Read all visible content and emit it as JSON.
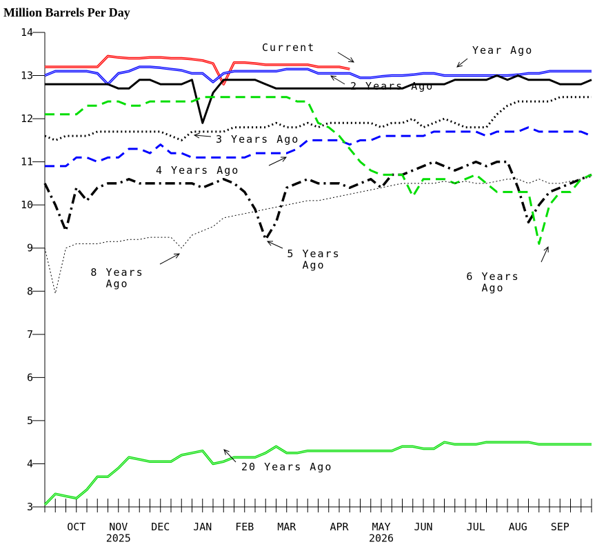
{
  "chart_data": {
    "type": "line",
    "title": "Million Barrels Per Day",
    "categories": [
      null,
      null,
      null,
      "OCT",
      null,
      null,
      null,
      "NOV\n2025",
      null,
      null,
      null,
      "DEC",
      null,
      null,
      null,
      "JAN",
      null,
      null,
      null,
      "FEB",
      null,
      null,
      null,
      "MAR",
      null,
      null,
      null,
      null,
      "APR",
      null,
      null,
      null,
      "MAY\n2026",
      null,
      null,
      null,
      "JUN",
      null,
      null,
      null,
      null,
      "JUL",
      null,
      null,
      null,
      "AUG",
      null,
      null,
      null,
      "SEP",
      null,
      null,
      null
    ],
    "ylim": [
      3,
      14
    ],
    "yticks": [
      3,
      4,
      5,
      6,
      7,
      8,
      9,
      10,
      11,
      12,
      13,
      14
    ],
    "series": [
      {
        "name": "Current",
        "color": "#ff0000",
        "style": "double",
        "values": [
          13.2,
          13.2,
          13.2,
          13.2,
          13.2,
          13.2,
          13.45,
          13.42,
          13.4,
          13.4,
          13.42,
          13.42,
          13.4,
          13.4,
          13.38,
          13.35,
          13.28,
          12.8,
          13.3,
          13.3,
          13.28,
          13.25,
          13.25,
          13.25,
          13.25,
          13.25,
          13.2,
          13.2,
          13.2,
          13.15,
          null,
          null,
          null,
          null,
          null,
          null,
          null,
          null,
          null,
          null,
          null,
          null,
          null,
          null,
          null,
          null,
          null,
          null,
          null,
          null,
          null,
          null,
          null
        ]
      },
      {
        "name": "Year Ago",
        "color": "#0000ff",
        "style": "double",
        "values": [
          13.0,
          13.1,
          13.1,
          13.1,
          13.1,
          13.05,
          12.8,
          13.05,
          13.1,
          13.2,
          13.2,
          13.18,
          13.15,
          13.12,
          13.05,
          13.05,
          12.85,
          13.05,
          13.1,
          13.1,
          13.1,
          13.1,
          13.1,
          13.15,
          13.15,
          13.15,
          13.05,
          13.05,
          13.05,
          13.05,
          12.95,
          12.95,
          12.98,
          13.0,
          13.0,
          13.02,
          13.05,
          13.05,
          13.0,
          13.0,
          13.0,
          13.0,
          13.0,
          13.0,
          13.0,
          13.02,
          13.05,
          13.05,
          13.1,
          13.1,
          13.1,
          13.1,
          13.1
        ]
      },
      {
        "name": "2 Years Ago",
        "color": "#000000",
        "style": "solid",
        "values": [
          12.8,
          12.8,
          12.8,
          12.8,
          12.8,
          12.8,
          12.8,
          12.7,
          12.7,
          12.9,
          12.9,
          12.8,
          12.8,
          12.8,
          12.9,
          11.9,
          12.6,
          12.9,
          12.9,
          12.9,
          12.9,
          12.8,
          12.7,
          12.7,
          12.7,
          12.7,
          12.7,
          12.7,
          12.7,
          12.7,
          12.7,
          12.7,
          12.7,
          12.7,
          12.7,
          12.8,
          12.8,
          12.8,
          12.8,
          12.9,
          12.9,
          12.9,
          12.9,
          13.0,
          12.9,
          13.0,
          12.9,
          12.9,
          12.9,
          12.8,
          12.8,
          12.8,
          12.9
        ]
      },
      {
        "name": "3 Years Ago",
        "color": "#000000",
        "style": "dotted",
        "values": [
          11.6,
          11.5,
          11.6,
          11.6,
          11.6,
          11.7,
          11.7,
          11.7,
          11.7,
          11.7,
          11.7,
          11.7,
          11.6,
          11.5,
          11.7,
          11.7,
          11.7,
          11.7,
          11.8,
          11.8,
          11.8,
          11.8,
          11.9,
          11.8,
          11.8,
          11.9,
          11.8,
          11.9,
          11.9,
          11.9,
          11.9,
          11.9,
          11.8,
          11.9,
          11.9,
          12.0,
          11.8,
          11.9,
          12.0,
          11.9,
          11.8,
          11.8,
          11.8,
          12.1,
          12.3,
          12.4,
          12.4,
          12.4,
          12.4,
          12.5,
          12.5,
          12.5,
          12.5
        ]
      },
      {
        "name": "4 Years Ago",
        "color": "#0000ff",
        "style": "dashed",
        "values": [
          10.9,
          10.9,
          10.9,
          11.1,
          11.1,
          11.0,
          11.1,
          11.1,
          11.3,
          11.3,
          11.2,
          11.4,
          11.2,
          11.2,
          11.1,
          11.1,
          11.1,
          11.1,
          11.1,
          11.1,
          11.2,
          11.2,
          11.2,
          11.2,
          11.3,
          11.5,
          11.5,
          11.5,
          11.5,
          11.4,
          11.5,
          11.5,
          11.6,
          11.6,
          11.6,
          11.6,
          11.6,
          11.7,
          11.7,
          11.7,
          11.7,
          11.7,
          11.6,
          11.7,
          11.7,
          11.7,
          11.8,
          11.7,
          11.7,
          11.7,
          11.7,
          11.7,
          11.6
        ]
      },
      {
        "name": "5 Years Ago",
        "color": "#000000",
        "style": "dashdot",
        "values": [
          10.5,
          10.0,
          9.4,
          10.4,
          10.1,
          10.4,
          10.5,
          10.5,
          10.6,
          10.5,
          10.5,
          10.5,
          10.5,
          10.5,
          10.5,
          10.4,
          10.5,
          10.6,
          10.5,
          10.3,
          9.9,
          9.2,
          9.6,
          10.4,
          10.5,
          10.6,
          10.5,
          10.5,
          10.5,
          10.4,
          10.5,
          10.6,
          10.4,
          10.7,
          10.7,
          10.8,
          10.9,
          11.0,
          10.9,
          10.8,
          10.9,
          11.0,
          10.9,
          11.0,
          11.0,
          10.4,
          9.6,
          10.0,
          10.3,
          10.4,
          10.5,
          10.6,
          10.7
        ]
      },
      {
        "name": "6 Years Ago",
        "color": "#00dd00",
        "style": "dashed",
        "values": [
          12.1,
          12.1,
          12.1,
          12.1,
          12.3,
          12.3,
          12.4,
          12.4,
          12.3,
          12.3,
          12.4,
          12.4,
          12.4,
          12.4,
          12.4,
          12.5,
          12.5,
          12.5,
          12.5,
          12.5,
          12.5,
          12.5,
          12.5,
          12.5,
          12.4,
          12.4,
          11.9,
          11.8,
          11.6,
          11.3,
          11.0,
          10.8,
          10.7,
          10.7,
          10.7,
          10.2,
          10.6,
          10.6,
          10.6,
          10.5,
          10.6,
          10.7,
          10.5,
          10.3,
          10.3,
          10.3,
          10.3,
          9.1,
          10.0,
          10.3,
          10.3,
          10.6,
          10.7
        ]
      },
      {
        "name": "8 Years Ago",
        "color": "#000000",
        "style": "thin-dotted",
        "values": [
          9.0,
          7.95,
          9.0,
          9.1,
          9.1,
          9.1,
          9.15,
          9.15,
          9.2,
          9.2,
          9.25,
          9.25,
          9.25,
          9.0,
          9.3,
          9.4,
          9.5,
          9.7,
          9.75,
          9.8,
          9.85,
          9.9,
          9.95,
          10.0,
          10.05,
          10.1,
          10.1,
          10.15,
          10.2,
          10.25,
          10.3,
          10.35,
          10.4,
          10.45,
          10.5,
          10.5,
          10.5,
          10.5,
          10.55,
          10.5,
          10.55,
          10.5,
          10.5,
          10.55,
          10.6,
          10.6,
          10.5,
          10.6,
          10.5,
          10.5,
          10.55,
          10.6,
          10.65
        ]
      },
      {
        "name": "20 Years Ago",
        "color": "#00dd00",
        "style": "double",
        "values": [
          3.05,
          3.3,
          3.25,
          3.2,
          3.4,
          3.7,
          3.7,
          3.9,
          4.15,
          4.1,
          4.05,
          4.05,
          4.05,
          4.2,
          4.25,
          4.3,
          4.0,
          4.05,
          4.15,
          4.15,
          4.15,
          4.25,
          4.4,
          4.25,
          4.25,
          4.3,
          4.3,
          4.3,
          4.3,
          4.3,
          4.3,
          4.3,
          4.3,
          4.3,
          4.4,
          4.4,
          4.35,
          4.35,
          4.5,
          4.45,
          4.45,
          4.45,
          4.5,
          4.5,
          4.5,
          4.5,
          4.5,
          4.45,
          4.45,
          4.45,
          4.45,
          4.45,
          4.45
        ]
      }
    ],
    "annotations": [
      "Current",
      "Year Ago",
      "2 Years Ago",
      "3 Years Ago",
      "4 Years Ago",
      "5 Years\nAgo",
      "6 Years\nAgo",
      "8 Years\nAgo",
      "20 Years Ago"
    ]
  }
}
